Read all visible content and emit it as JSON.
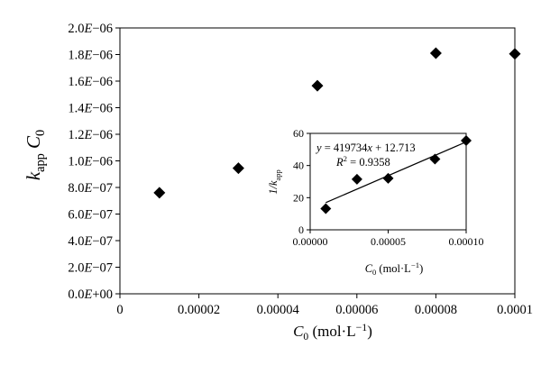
{
  "chart_data": [
    {
      "type": "scatter",
      "marker": "diamond",
      "color": "#000000",
      "ylabel": {
        "main": "k",
        "sub": "app",
        "rest": " C",
        "sub2": "0"
      },
      "xlabel": {
        "main": "C",
        "sub": "0",
        "unit_open": " (mol·L",
        "sup": "−1",
        "unit_close": ")"
      },
      "xlim": [
        0,
        0.0001
      ],
      "ylim": [
        0,
        2e-06
      ],
      "x_ticks": [
        0,
        2e-05,
        4e-05,
        6e-05,
        8e-05,
        0.0001
      ],
      "x_tick_labels": [
        "0",
        "0.00002",
        "0.00004",
        "0.00006",
        "0.00008",
        "0.0001"
      ],
      "y_ticks": [
        0,
        2e-07,
        4e-07,
        6e-07,
        8e-07,
        1e-06,
        1.2e-06,
        1.4e-06,
        1.6e-06,
        1.8e-06,
        2e-06
      ],
      "y_tick_labels": [
        {
          "m": "0.0",
          "e": "+00"
        },
        {
          "m": "2.0",
          "e": "−07"
        },
        {
          "m": "4.0",
          "e": "−07"
        },
        {
          "m": "6.0",
          "e": "−07"
        },
        {
          "m": "8.0",
          "e": "−07"
        },
        {
          "m": "1.0",
          "e": "−06"
        },
        {
          "m": "1.2",
          "e": "−06"
        },
        {
          "m": "1.4",
          "e": "−06"
        },
        {
          "m": "1.6",
          "e": "−06"
        },
        {
          "m": "1.8",
          "e": "−06"
        },
        {
          "m": "2.0",
          "e": "−06"
        }
      ],
      "points": [
        {
          "x": 1e-05,
          "y": 7.6e-07
        },
        {
          "x": 3e-05,
          "y": 9.45e-07
        },
        {
          "x": 5e-05,
          "y": 1.565e-06
        },
        {
          "x": 8e-05,
          "y": 1.81e-06
        },
        {
          "x": 0.0001,
          "y": 1.805e-06
        }
      ],
      "grid": false
    },
    {
      "type": "scatter",
      "marker": "diamond",
      "color": "#000000",
      "ylabel": {
        "main": "1/k",
        "sub": "app"
      },
      "xlabel": {
        "main": "C",
        "sub": "0",
        "unit_open": " (mol·L",
        "sup": "−1",
        "unit_close": ")"
      },
      "xlim": [
        0,
        0.0001
      ],
      "ylim": [
        0,
        60
      ],
      "x_ticks": [
        0,
        5e-05,
        0.0001
      ],
      "x_tick_labels": [
        "0.00000",
        "0.00005",
        "0.00010"
      ],
      "y_ticks": [
        0,
        20,
        40,
        60
      ],
      "y_tick_labels": [
        "0",
        "20",
        "40",
        "60"
      ],
      "points": [
        {
          "x": 1e-05,
          "y": 13.2
        },
        {
          "x": 3e-05,
          "y": 31.5
        },
        {
          "x": 5e-05,
          "y": 32.0
        },
        {
          "x": 8e-05,
          "y": 44.0
        },
        {
          "x": 0.0001,
          "y": 55.5
        }
      ],
      "trendline": {
        "type": "linear",
        "slope": 419734,
        "intercept": 12.713,
        "x_range": [
          1e-05,
          0.0001
        ],
        "equation": {
          "lhs": "y",
          "eq": " = 419734",
          "var": "x",
          "rest": " + 12.713"
        },
        "r2": {
          "lhs": "R",
          "sup": "2",
          "rest": " = 0.9358"
        }
      },
      "grid": false
    }
  ]
}
